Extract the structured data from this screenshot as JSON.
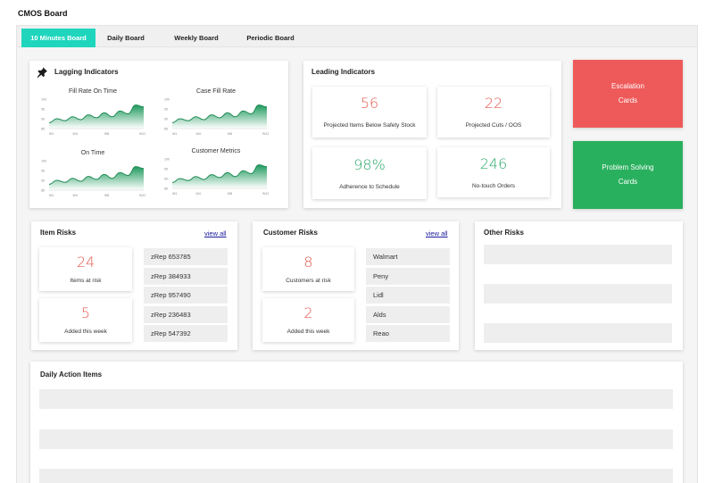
{
  "app": {
    "title": "CMOS Board"
  },
  "tabs": [
    "10 Minutes Board",
    "Daily Board",
    "Weekly Board",
    "Periodic Board"
  ],
  "lagging": {
    "title": "Lagging Indicators",
    "icon": "pin-icon",
    "y_ticks": [
      "100",
      "95",
      "90",
      "85"
    ],
    "x_ticks": [
      "W1",
      "W4",
      "W8",
      "W12"
    ],
    "charts": [
      {
        "title": "Fill Rate On Time",
        "values": [
          88,
          90,
          89,
          91,
          89.5,
          92,
          90.5,
          93,
          91,
          94,
          92.5,
          97,
          96
        ]
      },
      {
        "title": "Case Fill Rate",
        "values": [
          88,
          90,
          89,
          91,
          89.5,
          92,
          90.5,
          93,
          91,
          94,
          92.5,
          97,
          96
        ]
      },
      {
        "title": "On Time",
        "values": [
          88,
          90,
          89,
          91,
          89.5,
          92,
          90.5,
          93,
          91,
          94,
          92.5,
          97,
          96
        ]
      },
      {
        "title": "Customer Metrics",
        "values": [
          88,
          90,
          89,
          91,
          89.5,
          92,
          90.5,
          93,
          91,
          94,
          92.5,
          97,
          96
        ]
      }
    ]
  },
  "leading": {
    "title": "Leading Indicators",
    "metrics": [
      {
        "value": "56",
        "label": "Projected Items Below Safety Stock",
        "color": "#e5584f"
      },
      {
        "value": "22",
        "label": "Projected Cuts / OOS",
        "color": "#e5584f"
      },
      {
        "value": "98%",
        "label": "Adherence to Schedule",
        "color": "#2aa868"
      },
      {
        "value": "246",
        "label": "No-touch Orders",
        "color": "#2aa868"
      }
    ]
  },
  "escalation": {
    "line1": "Escalation",
    "line2": "Cards",
    "color": "#ee5a5a"
  },
  "problem_solving": {
    "line1": "Problem Solving",
    "line2": "Cards",
    "color": "#29b05e"
  },
  "item_risks": {
    "title": "Item Risks",
    "view_all": "view all",
    "metrics": [
      {
        "value": "24",
        "label": "Items at risk"
      },
      {
        "value": "5",
        "label": "Added this week"
      }
    ],
    "items": [
      "zRep 653785",
      "zRep 384933",
      "zRep 957490",
      "zRep 236483",
      "zRep 547392"
    ]
  },
  "customer_risks": {
    "title": "Customer Risks",
    "view_all": "view all",
    "metrics": [
      {
        "value": "8",
        "label": "Customers at risk"
      },
      {
        "value": "2",
        "label": "Added this week"
      }
    ],
    "items": [
      "Walmart",
      "Peny",
      "Lidl",
      "Alds",
      "Reao"
    ]
  },
  "other_risks": {
    "title": "Other Risks"
  },
  "daily_actions": {
    "title": "Daily Action Items"
  }
}
